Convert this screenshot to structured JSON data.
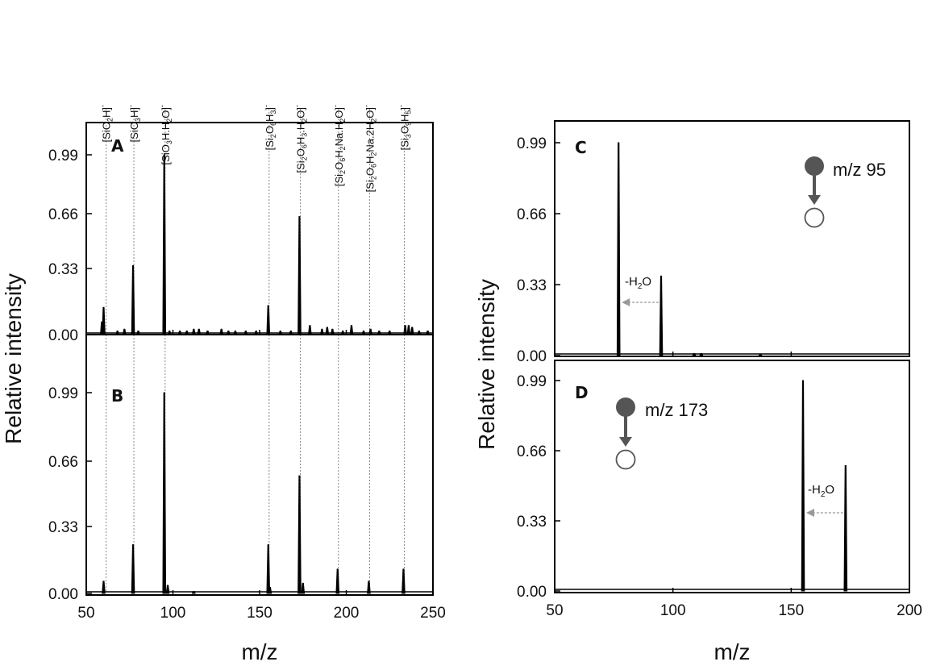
{
  "figure": {
    "left_ylabel": "Relative intensity",
    "left_xlabel": "m/z",
    "right_ylabel": "Relative intensity",
    "right_xlabel": "m/z"
  },
  "chart_data": [
    {
      "type": "line",
      "panel": "A",
      "xlim": [
        50,
        250
      ],
      "ylim": [
        0,
        1.15
      ],
      "xticks": [
        "50",
        "100",
        "150",
        "200",
        "250"
      ],
      "yticks": [
        "0.00",
        "0.33",
        "0.66",
        "0.99"
      ],
      "peaks": [
        {
          "x": 59,
          "y": 0.07
        },
        {
          "x": 60,
          "y": 0.15
        },
        {
          "x": 68,
          "y": 0.02
        },
        {
          "x": 72,
          "y": 0.03
        },
        {
          "x": 77,
          "y": 0.38
        },
        {
          "x": 80,
          "y": 0.02
        },
        {
          "x": 95,
          "y": 0.99
        },
        {
          "x": 98,
          "y": 0.02
        },
        {
          "x": 104,
          "y": 0.02
        },
        {
          "x": 108,
          "y": 0.02
        },
        {
          "x": 112,
          "y": 0.03
        },
        {
          "x": 115,
          "y": 0.03
        },
        {
          "x": 120,
          "y": 0.02
        },
        {
          "x": 128,
          "y": 0.03
        },
        {
          "x": 132,
          "y": 0.02
        },
        {
          "x": 136,
          "y": 0.02
        },
        {
          "x": 142,
          "y": 0.02
        },
        {
          "x": 148,
          "y": 0.02
        },
        {
          "x": 155,
          "y": 0.16
        },
        {
          "x": 162,
          "y": 0.02
        },
        {
          "x": 168,
          "y": 0.02
        },
        {
          "x": 173,
          "y": 0.65
        },
        {
          "x": 179,
          "y": 0.05
        },
        {
          "x": 186,
          "y": 0.03
        },
        {
          "x": 189,
          "y": 0.04
        },
        {
          "x": 192,
          "y": 0.03
        },
        {
          "x": 198,
          "y": 0.02
        },
        {
          "x": 203,
          "y": 0.05
        },
        {
          "x": 210,
          "y": 0.02
        },
        {
          "x": 214,
          "y": 0.03
        },
        {
          "x": 219,
          "y": 0.02
        },
        {
          "x": 225,
          "y": 0.02
        },
        {
          "x": 234,
          "y": 0.05
        },
        {
          "x": 236,
          "y": 0.05
        },
        {
          "x": 238,
          "y": 0.04
        },
        {
          "x": 242,
          "y": 0.02
        },
        {
          "x": 247,
          "y": 0.02
        }
      ]
    },
    {
      "type": "line",
      "panel": "B",
      "xlim": [
        50,
        250
      ],
      "ylim": [
        0,
        1.15
      ],
      "xticks": [
        "50",
        "100",
        "150",
        "200",
        "250"
      ],
      "yticks": [
        "0.00",
        "0.33",
        "0.66",
        "0.99"
      ],
      "peaks": [
        {
          "x": 60,
          "y": 0.06
        },
        {
          "x": 77,
          "y": 0.24
        },
        {
          "x": 95,
          "y": 0.99
        },
        {
          "x": 97,
          "y": 0.04
        },
        {
          "x": 112,
          "y": 0.01
        },
        {
          "x": 155,
          "y": 0.24
        },
        {
          "x": 156,
          "y": 0.03
        },
        {
          "x": 173,
          "y": 0.58
        },
        {
          "x": 175,
          "y": 0.05
        },
        {
          "x": 195,
          "y": 0.12
        },
        {
          "x": 213,
          "y": 0.06
        },
        {
          "x": 233,
          "y": 0.12
        }
      ]
    },
    {
      "type": "line",
      "panel": "C",
      "xlim": [
        50,
        200
      ],
      "ylim": [
        0,
        1.1
      ],
      "xticks": [
        "50",
        "100",
        "150",
        "200"
      ],
      "yticks": [
        "0.00",
        "0.33",
        "0.66",
        "0.99"
      ],
      "peaks": [
        {
          "x": 77,
          "y": 0.99
        },
        {
          "x": 95,
          "y": 0.37
        },
        {
          "x": 109,
          "y": 0.01
        },
        {
          "x": 112,
          "y": 0.01
        },
        {
          "x": 137,
          "y": 0.005
        }
      ],
      "annotation": {
        "text": "-H2O",
        "arrow_from": 94,
        "arrow_to": 77
      },
      "precursor_label": "m/z 95"
    },
    {
      "type": "line",
      "panel": "D",
      "xlim": [
        50,
        200
      ],
      "ylim": [
        0,
        1.1
      ],
      "xticks": [
        "50",
        "100",
        "150",
        "200"
      ],
      "yticks": [
        "0.00",
        "0.33",
        "0.66",
        "0.99"
      ],
      "peaks": [
        {
          "x": 155,
          "y": 0.99
        },
        {
          "x": 173,
          "y": 0.59
        }
      ],
      "annotation": {
        "text": "-H2O",
        "arrow_from": 172,
        "arrow_to": 155
      },
      "precursor_label": "m/z 173"
    }
  ],
  "ion_labels": [
    {
      "mz": 61,
      "base": "[SiO",
      "sub": "2",
      "rest": "H]",
      "sup": "-"
    },
    {
      "mz": 77,
      "base": "[SiO",
      "sub": "3",
      "rest": "H]",
      "sup": "-"
    },
    {
      "mz": 95,
      "base": "[SiO",
      "sub": "3",
      "rest": "H.H",
      "sub2": "2",
      "rest2": "O]",
      "sup": "-"
    },
    {
      "mz": 155,
      "base": "[Si",
      "sub": "2",
      "rest": "O",
      "sub2": "6",
      "rest2": "H",
      "sub3": "3",
      "rest3": "]",
      "sup": "-"
    },
    {
      "mz": 173,
      "base": "[Si",
      "sub": "2",
      "rest": "O",
      "sub2": "6",
      "rest2": "H",
      "sub3": "3",
      "rest3": ".H",
      "sub4": "2",
      "rest4": "O]",
      "sup": "-"
    },
    {
      "mz": 195,
      "base": "[Si",
      "sub": "2",
      "rest": "O",
      "sub2": "6",
      "rest2": "H",
      "sub3": "2",
      "rest3": "Na.H",
      "sub4": "2",
      "rest4": "O]",
      "sup": "-"
    },
    {
      "mz": 213,
      "base": "[Si",
      "sub": "2",
      "rest": "O",
      "sub2": "6",
      "rest2": "H",
      "sub3": "2",
      "rest3": "Na.2H",
      "sub4": "2",
      "rest4": "O]",
      "sup": "-"
    },
    {
      "mz": 233,
      "base": "[Si",
      "sub": "3",
      "rest": "O",
      "sub2": "9",
      "rest2": "H",
      "sub3": "5",
      "rest3": "]",
      "sup": "-"
    }
  ],
  "colors": {
    "line": "#000000",
    "guide": "#888888",
    "arrow": "#999999",
    "marker_filled": "#555555",
    "marker_outline": "#555555"
  }
}
